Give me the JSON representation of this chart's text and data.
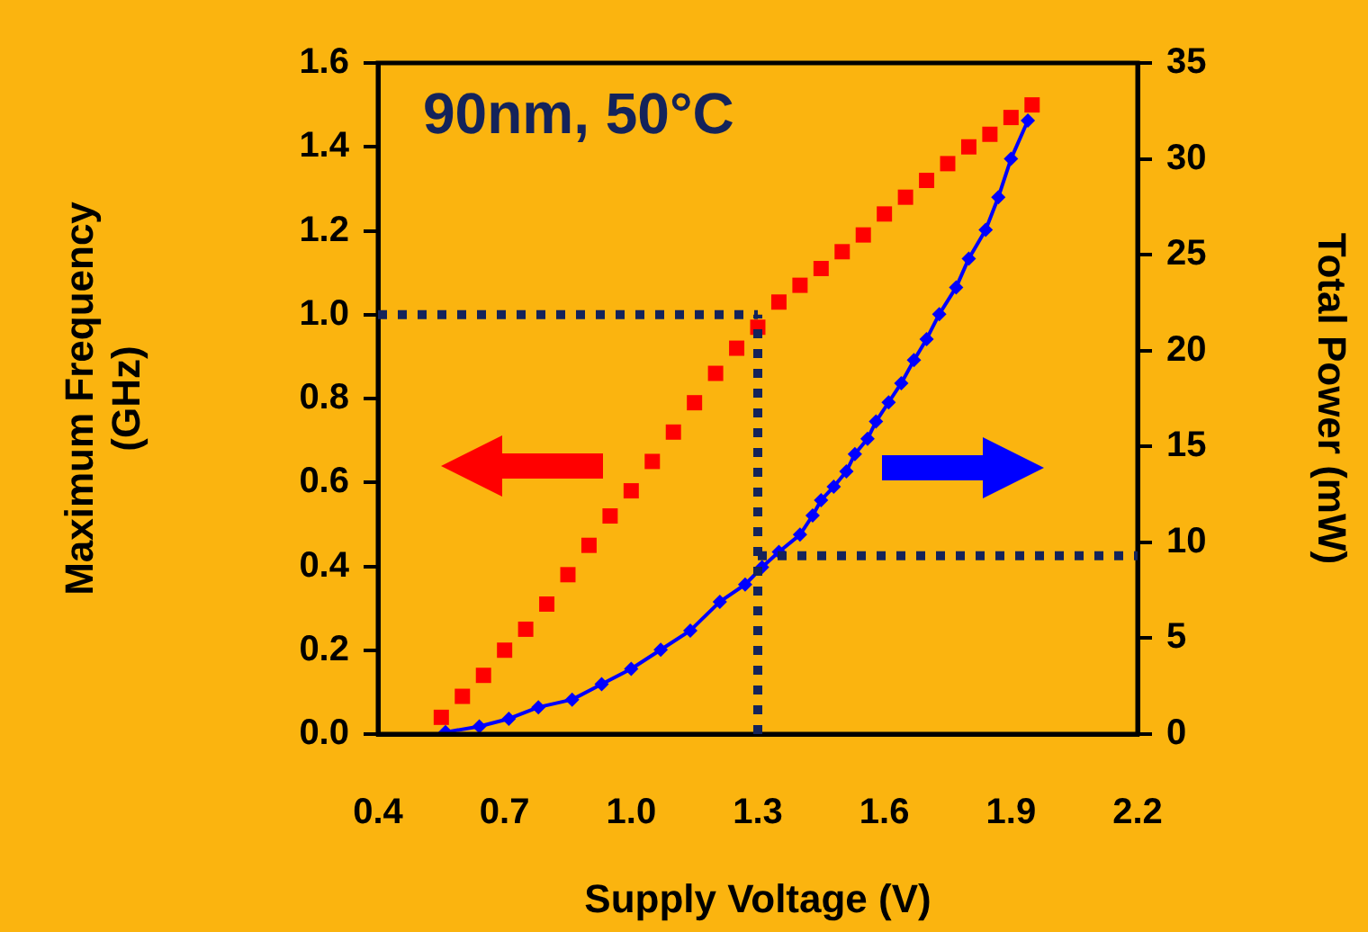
{
  "chart_data": {
    "type": "line",
    "xlabel": "Supply Voltage (V)",
    "ylabel": "Maximum Frequency (GHz)",
    "y2label": "Total Power (mW)",
    "xlim": [
      0.4,
      2.2
    ],
    "xticks": [
      {
        "value": 0.4,
        "label": "0.4"
      },
      {
        "value": 0.7,
        "label": "0.7"
      },
      {
        "value": 1.0,
        "label": "1.0"
      },
      {
        "value": 1.3,
        "label": "1.3"
      },
      {
        "value": 1.6,
        "label": "1.6"
      },
      {
        "value": 1.9,
        "label": "1.9"
      },
      {
        "value": 2.2,
        "label": "2.2"
      }
    ],
    "ylim": [
      0,
      1.6
    ],
    "yticks": [
      {
        "value": 0,
        "label": "0.0"
      },
      {
        "value": 0.2,
        "label": "0.2"
      },
      {
        "value": 0.4,
        "label": "0.4"
      },
      {
        "value": 0.6,
        "label": "0.6"
      },
      {
        "value": 0.8,
        "label": "0.8"
      },
      {
        "value": 1.0,
        "label": "1.0"
      },
      {
        "value": 1.2,
        "label": "1.2"
      },
      {
        "value": 1.4,
        "label": "1.4"
      },
      {
        "value": 1.6,
        "label": "1.6"
      }
    ],
    "y2lim": [
      0,
      35
    ],
    "y2ticks": [
      0,
      5,
      10,
      15,
      20,
      25,
      30,
      35
    ],
    "grid": false,
    "legend": false,
    "annotations": [
      "90nm, 50°C"
    ],
    "ref_lines": [
      {
        "axis": "y",
        "value": 1.0,
        "color": "#14235a",
        "line_style": "dotted"
      },
      {
        "axis": "x",
        "value": 1.3,
        "color": "#14235a",
        "line_style": "dotted"
      },
      {
        "axis": "y2",
        "value": 9.3,
        "color": "#14235a",
        "line_style": "dotted"
      }
    ],
    "series": [
      {
        "type": "scatter",
        "color": "#ff0000",
        "marker": "square",
        "x": [
          0.55,
          0.6,
          0.65,
          0.7,
          0.75,
          0.8,
          0.85,
          0.9,
          0.95,
          1.0,
          1.05,
          1.1,
          1.15,
          1.2,
          1.25,
          1.3,
          1.35,
          1.4,
          1.45,
          1.5,
          1.55,
          1.6,
          1.65,
          1.7,
          1.75,
          1.8,
          1.85,
          1.9,
          1.95
        ],
        "values": [
          0.04,
          0.09,
          0.14,
          0.2,
          0.25,
          0.31,
          0.38,
          0.45,
          0.52,
          0.58,
          0.65,
          0.72,
          0.79,
          0.86,
          0.92,
          0.97,
          1.03,
          1.07,
          1.11,
          1.15,
          1.19,
          1.24,
          1.28,
          1.32,
          1.36,
          1.4,
          1.43,
          1.47,
          1.5
        ]
      },
      {
        "axis": "y2",
        "color": "#0000ff",
        "marker": "diamond",
        "line_style": "solid",
        "x": [
          0.56,
          0.64,
          0.71,
          0.78,
          0.86,
          0.93,
          1.0,
          1.07,
          1.14,
          1.21,
          1.27,
          1.31,
          1.35,
          1.4,
          1.43,
          1.45,
          1.48,
          1.51,
          1.53,
          1.56,
          1.58,
          1.61,
          1.64,
          1.67,
          1.7,
          1.73,
          1.77,
          1.8,
          1.84,
          1.87,
          1.9,
          1.94
        ],
        "values": [
          0.1,
          0.4,
          0.8,
          1.4,
          1.8,
          2.6,
          3.4,
          4.4,
          5.4,
          6.9,
          7.8,
          8.7,
          9.5,
          10.4,
          11.4,
          12.2,
          12.9,
          13.7,
          14.6,
          15.4,
          16.3,
          17.3,
          18.3,
          19.5,
          20.6,
          21.9,
          23.3,
          24.8,
          26.3,
          28.0,
          30.0,
          32.0
        ]
      }
    ]
  }
}
